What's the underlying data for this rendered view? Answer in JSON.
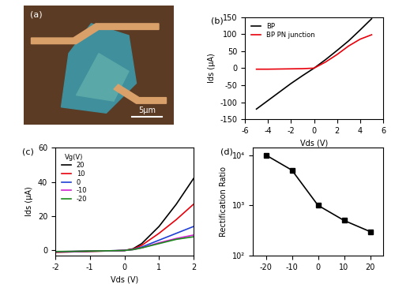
{
  "chart_data": [
    {
      "type": "image",
      "title": "(a)",
      "annotations": [
        "5μm"
      ]
    },
    {
      "type": "line",
      "title": "(b)",
      "x_label": "Vds (V)",
      "y_label": "Ids (μA)",
      "x": [
        -5,
        -4,
        -3,
        -2,
        -1,
        0,
        1,
        2,
        3,
        4,
        5
      ],
      "series": [
        {
          "name": "BP",
          "color": "#000000",
          "values": [
            -120,
            -95,
            -70,
            -45,
            -22,
            0,
            25,
            52,
            80,
            112,
            145
          ]
        },
        {
          "name": "BP PN junction",
          "color": "#e8000b",
          "values": [
            -3,
            -3,
            -2.5,
            -2,
            -1.5,
            0,
            18,
            40,
            65,
            85,
            98
          ]
        }
      ],
      "xlim": [
        -6,
        6
      ],
      "xticks": [
        -6,
        -4,
        -2,
        0,
        2,
        4,
        6
      ],
      "ylim": [
        -150,
        150
      ],
      "yticks": [
        -150,
        -100,
        -50,
        0,
        50,
        100,
        150
      ],
      "legend": "upper left"
    },
    {
      "type": "line",
      "title": "(c)",
      "x_label": "Vds (V)",
      "y_label": "Ids (μA)",
      "legend_title": "Vg(V)",
      "x": [
        -2,
        -1.5,
        -1,
        -0.5,
        0,
        0.25,
        0.5,
        1,
        1.5,
        2
      ],
      "series": [
        {
          "name": "20",
          "color": "#000000",
          "values": [
            -1,
            -0.8,
            -0.5,
            -0.3,
            0,
            1,
            4,
            14,
            27,
            42
          ]
        },
        {
          "name": "10",
          "color": "#e8000b",
          "values": [
            -1,
            -0.8,
            -0.5,
            -0.3,
            0,
            0.8,
            3,
            10,
            18,
            27
          ]
        },
        {
          "name": "0",
          "color": "#1f3fd6",
          "values": [
            -0.8,
            -0.6,
            -0.4,
            -0.2,
            0,
            0.6,
            2,
            6,
            10,
            14
          ]
        },
        {
          "name": "-10",
          "color": "#d020d0",
          "values": [
            -0.7,
            -0.5,
            -0.3,
            -0.2,
            0,
            0.5,
            1.5,
            4.5,
            7,
            9
          ]
        },
        {
          "name": "-20",
          "color": "#1a8a1a",
          "values": [
            -0.6,
            -0.5,
            -0.3,
            -0.2,
            0,
            0.5,
            1.5,
            4,
            6.5,
            8
          ]
        }
      ],
      "xlim": [
        -2,
        2
      ],
      "xticks": [
        -2,
        -1,
        0,
        1,
        2
      ],
      "ylim": [
        -3,
        60
      ],
      "yticks": [
        0,
        20,
        40,
        60
      ],
      "legend": "upper left"
    },
    {
      "type": "line",
      "title": "(d)",
      "y_label": "Rectification Ratio",
      "x": [
        -20,
        -10,
        0,
        10,
        20
      ],
      "values": [
        10000,
        5000,
        1000,
        500,
        300
      ],
      "color": "#000000",
      "marker": "square",
      "line_style": "solid",
      "log": "y",
      "xlim": [
        -25,
        25
      ],
      "xticks": [
        -20,
        -10,
        0,
        10,
        20
      ],
      "ylim": [
        100,
        14000
      ],
      "yticks": [
        {
          "value": 100,
          "label": "10²"
        },
        {
          "value": 1000,
          "label": "10³"
        },
        {
          "value": 10000,
          "label": "10⁴"
        }
      ]
    }
  ]
}
